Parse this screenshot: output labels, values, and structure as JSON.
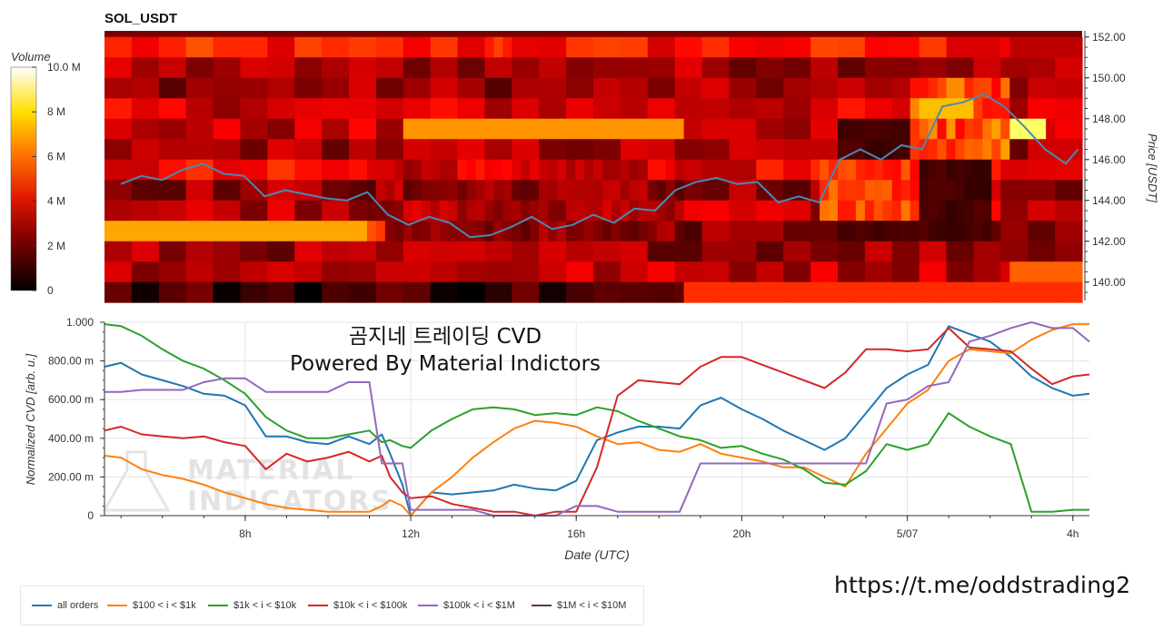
{
  "chart_data": [
    {
      "type": "heatmap",
      "title": "SOL_USDT",
      "colorbar": {
        "label": "Volume",
        "ticks": [
          "10.0 M",
          "8 M",
          "6 M",
          "4 M",
          "2 M",
          "0"
        ],
        "range": [
          0,
          10000000
        ],
        "colormap": "hot"
      },
      "price_axis": {
        "label": "Price [USDT]",
        "ticks": [
          "152.00",
          "150.00",
          "148.00",
          "146.00",
          "144.00",
          "142.00",
          "140.00"
        ],
        "range": [
          139.1,
          152.3
        ],
        "side": "right"
      },
      "price_bands": [
        151.5,
        150.5,
        149.5,
        148.5,
        147.5,
        146.5,
        145.5,
        144.5,
        143.5,
        142.5,
        141.5,
        140.5,
        139.5
      ],
      "price_line": {
        "color": "#4a89b7",
        "x_hours": [
          5.0,
          5.5,
          6.0,
          6.5,
          7.0,
          7.5,
          8.0,
          8.5,
          9.0,
          9.5,
          10.0,
          10.5,
          11.0,
          11.5,
          12.0,
          12.5,
          13.0,
          13.5,
          14.0,
          14.5,
          15.0,
          15.5,
          16.0,
          16.5,
          17.0,
          17.5,
          18.0,
          18.5,
          19.0,
          19.5,
          20.0,
          20.5,
          21.0,
          21.5,
          22.0,
          22.5,
          23.0,
          23.5,
          24.0,
          24.5,
          25.0,
          25.5,
          26.0,
          26.5,
          27.0,
          27.5,
          28.0,
          28.3
        ],
        "prices": [
          144.8,
          145.2,
          145.0,
          145.5,
          145.8,
          145.3,
          145.2,
          144.2,
          144.5,
          144.3,
          144.1,
          144.0,
          144.4,
          143.3,
          142.8,
          143.2,
          142.9,
          142.2,
          142.3,
          142.7,
          143.2,
          142.6,
          142.8,
          143.3,
          142.9,
          143.6,
          143.5,
          144.5,
          144.9,
          145.1,
          144.8,
          144.9,
          143.9,
          144.2,
          143.9,
          146.0,
          146.5,
          146.0,
          146.7,
          146.5,
          148.6,
          148.8,
          149.2,
          148.6,
          147.6,
          146.5,
          145.8,
          146.5
        ],
        "x_unit": "hours UTC",
        "y_unit": "USDT"
      }
    },
    {
      "type": "line",
      "xlabel": "Date (UTC)",
      "ylabel": "Normalized CVD [arb. u.]",
      "x_tick_labels": [
        "8h",
        "12h",
        "16h",
        "20h",
        "5/07",
        "4h"
      ],
      "x_tick_hours": [
        8,
        12,
        16,
        20,
        24,
        28
      ],
      "xlim_hours": [
        4.6,
        28.4
      ],
      "y_tick_labels": [
        "1.000",
        "800.00 m",
        "600.00 m",
        "400.00 m",
        "200.00 m",
        "0"
      ],
      "ylim": [
        0,
        1
      ],
      "grid": true,
      "legend_position": "bottom",
      "x_hours": [
        4.6,
        5.0,
        5.5,
        6.0,
        6.5,
        7.0,
        7.5,
        8.0,
        8.5,
        9.0,
        9.5,
        10.0,
        10.5,
        11.0,
        11.3,
        11.5,
        11.8,
        12.0,
        12.5,
        13.0,
        13.5,
        14.0,
        14.5,
        15.0,
        15.5,
        16.0,
        16.5,
        17.0,
        17.5,
        18.0,
        18.5,
        19.0,
        19.5,
        20.0,
        20.5,
        21.0,
        21.5,
        22.0,
        22.5,
        23.0,
        23.5,
        24.0,
        24.5,
        25.0,
        25.5,
        26.0,
        26.5,
        27.0,
        27.5,
        28.0,
        28.4
      ],
      "series": [
        {
          "name": "all orders",
          "color": "#1f77b4",
          "values": [
            0.77,
            0.79,
            0.73,
            0.7,
            0.67,
            0.63,
            0.62,
            0.57,
            0.41,
            0.41,
            0.38,
            0.37,
            0.41,
            0.37,
            0.42,
            0.32,
            0.16,
            0.0,
            0.12,
            0.11,
            0.12,
            0.13,
            0.16,
            0.14,
            0.13,
            0.18,
            0.39,
            0.43,
            0.46,
            0.46,
            0.45,
            0.57,
            0.61,
            0.55,
            0.5,
            0.44,
            0.39,
            0.34,
            0.4,
            0.53,
            0.66,
            0.73,
            0.78,
            0.98,
            0.94,
            0.9,
            0.82,
            0.72,
            0.66,
            0.62,
            0.63
          ]
        },
        {
          "name": "$100 < i < $1k",
          "color": "#ff7f0e",
          "values": [
            0.31,
            0.3,
            0.24,
            0.21,
            0.19,
            0.16,
            0.12,
            0.09,
            0.06,
            0.04,
            0.03,
            0.02,
            0.02,
            0.02,
            0.05,
            0.08,
            0.05,
            0.0,
            0.12,
            0.2,
            0.3,
            0.38,
            0.45,
            0.49,
            0.48,
            0.46,
            0.41,
            0.37,
            0.38,
            0.34,
            0.33,
            0.37,
            0.32,
            0.3,
            0.28,
            0.25,
            0.25,
            0.2,
            0.15,
            0.32,
            0.45,
            0.58,
            0.65,
            0.8,
            0.86,
            0.85,
            0.84,
            0.91,
            0.96,
            0.99,
            0.99
          ]
        },
        {
          "name": "$1k < i < $10k",
          "color": "#2ca02c",
          "values": [
            0.99,
            0.98,
            0.93,
            0.86,
            0.8,
            0.76,
            0.7,
            0.63,
            0.51,
            0.44,
            0.4,
            0.4,
            0.42,
            0.44,
            0.38,
            0.39,
            0.36,
            0.35,
            0.44,
            0.5,
            0.55,
            0.56,
            0.55,
            0.52,
            0.53,
            0.52,
            0.56,
            0.54,
            0.49,
            0.45,
            0.41,
            0.39,
            0.35,
            0.36,
            0.32,
            0.29,
            0.24,
            0.17,
            0.16,
            0.23,
            0.37,
            0.34,
            0.37,
            0.53,
            0.46,
            0.41,
            0.37,
            0.02,
            0.02,
            0.03,
            0.03
          ]
        },
        {
          "name": "$10k < i < $100k",
          "color": "#d62728",
          "values": [
            0.44,
            0.46,
            0.42,
            0.41,
            0.4,
            0.41,
            0.38,
            0.36,
            0.24,
            0.32,
            0.28,
            0.3,
            0.33,
            0.28,
            0.31,
            0.2,
            0.12,
            0.09,
            0.1,
            0.06,
            0.04,
            0.02,
            0.02,
            0.0,
            0.02,
            0.02,
            0.25,
            0.62,
            0.7,
            0.69,
            0.68,
            0.77,
            0.82,
            0.82,
            0.78,
            0.74,
            0.7,
            0.66,
            0.74,
            0.86,
            0.86,
            0.85,
            0.86,
            0.97,
            0.87,
            0.86,
            0.85,
            0.76,
            0.68,
            0.72,
            0.73
          ]
        },
        {
          "name": "$100k < i < $1M",
          "color": "#9467bd",
          "values": [
            0.64,
            0.64,
            0.65,
            0.65,
            0.65,
            0.69,
            0.71,
            0.71,
            0.64,
            0.64,
            0.64,
            0.64,
            0.69,
            0.69,
            0.27,
            0.27,
            0.27,
            0.03,
            0.03,
            0.03,
            0.03,
            0.0,
            0.0,
            0.0,
            0.0,
            0.05,
            0.05,
            0.02,
            0.02,
            0.02,
            0.02,
            0.27,
            0.27,
            0.27,
            0.27,
            0.27,
            0.27,
            0.27,
            0.27,
            0.27,
            0.58,
            0.6,
            0.67,
            0.69,
            0.9,
            0.93,
            0.97,
            1.0,
            0.97,
            0.97,
            0.9
          ]
        },
        {
          "name": "$1M < i < $10M",
          "color": "#5e3c34",
          "values": []
        }
      ]
    }
  ],
  "overlay": {
    "title_line1": "곰지네 트레이딩 CVD",
    "title_line2": "Powered By Material Indictors",
    "watermark_line1": "MATERIAL",
    "watermark_line2": "INDICATORS",
    "link": "https://t.me/oddstrading2"
  }
}
